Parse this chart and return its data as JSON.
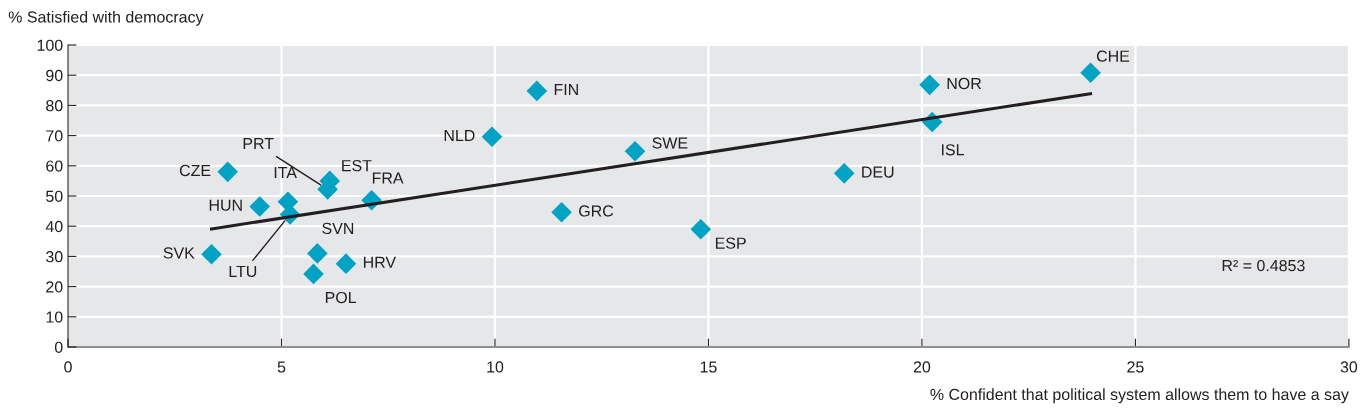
{
  "chart_data": {
    "type": "scatter",
    "xlabel": "% Confident that political system allows them to have a say",
    "ylabel": "% Satisfied with democracy",
    "series": [
      {
        "color": "#00a3c4",
        "marker": "diamond",
        "x": [
          3.74,
          3.36,
          4.49,
          5.15,
          5.2,
          6.08,
          6.13,
          7.11,
          5.84,
          6.51,
          5.75,
          9.93,
          10.98,
          11.56,
          13.28,
          14.82,
          18.18,
          20.18,
          20.24,
          23.95
        ],
        "values": [
          58.0,
          30.7,
          46.5,
          48.1,
          43.9,
          52.2,
          55.0,
          48.6,
          31.0,
          27.6,
          24.2,
          69.6,
          84.8,
          44.6,
          64.8,
          39.0,
          57.5,
          86.8,
          74.5,
          90.8
        ]
      },
      {
        "type": "line",
        "color": "#231f20",
        "marker": "none",
        "line_style": "solid",
        "x": [
          3.36,
          23.95
        ],
        "values": [
          39.1,
          83.9
        ]
      }
    ],
    "annotations": [
      {
        "text": "CZE",
        "x": 3.74,
        "y": 58.0
      },
      {
        "text": "SVK",
        "x": 3.36,
        "y": 30.7
      },
      {
        "text": "HUN",
        "x": 4.49,
        "y": 46.5
      },
      {
        "text": "ITA",
        "x": 5.15,
        "y": 48.1
      },
      {
        "text": "LTU",
        "x": 5.2,
        "y": 43.9
      },
      {
        "text": "PRT",
        "x": 6.08,
        "y": 52.2
      },
      {
        "text": "EST",
        "x": 6.13,
        "y": 55.0
      },
      {
        "text": "FRA",
        "x": 7.11,
        "y": 48.6
      },
      {
        "text": "SVN",
        "x": 5.84,
        "y": 31.0
      },
      {
        "text": "HRV",
        "x": 6.51,
        "y": 27.6
      },
      {
        "text": "POL",
        "x": 5.75,
        "y": 24.2
      },
      {
        "text": "NLD",
        "x": 9.93,
        "y": 69.6
      },
      {
        "text": "FIN",
        "x": 10.98,
        "y": 84.8
      },
      {
        "text": "GRC",
        "x": 11.56,
        "y": 44.6
      },
      {
        "text": "SWE",
        "x": 13.28,
        "y": 64.8
      },
      {
        "text": "ESP",
        "x": 14.82,
        "y": 39.0
      },
      {
        "text": "DEU",
        "x": 18.18,
        "y": 57.5
      },
      {
        "text": "NOR",
        "x": 20.18,
        "y": 86.8
      },
      {
        "text": "ISL",
        "x": 20.24,
        "y": 74.5
      },
      {
        "text": "CHE",
        "x": 23.95,
        "y": 90.8
      },
      "R² = 0.4853"
    ],
    "xlim": [
      0,
      30
    ],
    "xticks": [
      0,
      5,
      10,
      15,
      20,
      25,
      30
    ],
    "ylim": [
      0,
      100
    ],
    "yticks": [
      0,
      10,
      20,
      30,
      40,
      50,
      60,
      70,
      80,
      90,
      100
    ],
    "grid": true,
    "legend": false
  }
}
